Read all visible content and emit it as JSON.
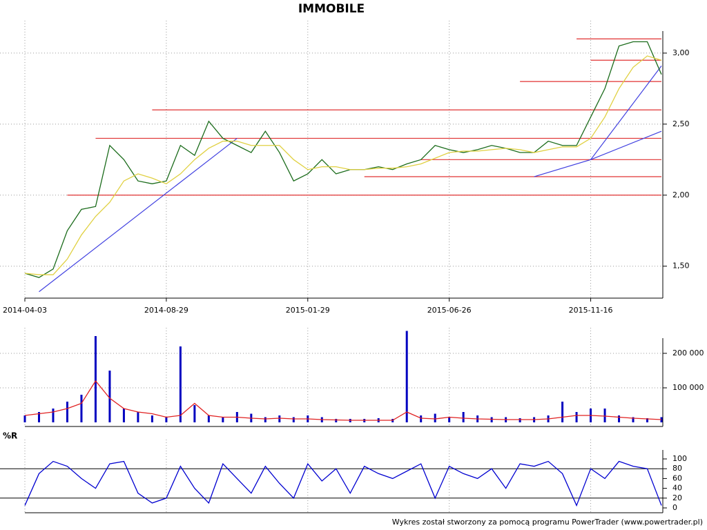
{
  "chart_data": [
    {
      "type": "line",
      "title": "IMMOBILE",
      "categories": [
        "2014-04-03",
        null,
        null,
        null,
        null,
        null,
        null,
        null,
        null,
        null,
        "2014-08-29",
        null,
        null,
        null,
        null,
        null,
        null,
        null,
        null,
        null,
        "2015-01-29",
        null,
        null,
        null,
        null,
        null,
        null,
        null,
        null,
        null,
        "2015-06-26",
        null,
        null,
        null,
        null,
        null,
        null,
        null,
        null,
        null,
        "2015-11-16",
        null,
        null,
        null,
        null,
        null
      ],
      "series": [
        {
          "color": "#1a6b1a",
          "values": [
            1.45,
            1.42,
            1.48,
            1.75,
            1.9,
            1.92,
            2.35,
            2.25,
            2.1,
            2.08,
            2.1,
            2.35,
            2.28,
            2.52,
            2.4,
            2.35,
            2.3,
            2.45,
            2.3,
            2.1,
            2.15,
            2.25,
            2.15,
            2.18,
            2.18,
            2.2,
            2.18,
            2.22,
            2.25,
            2.35,
            2.32,
            2.3,
            2.32,
            2.35,
            2.33,
            2.3,
            2.3,
            2.38,
            2.35,
            2.35,
            2.55,
            2.75,
            3.05,
            3.08,
            3.08,
            2.85
          ]
        },
        {
          "color": "#e0d040",
          "values": [
            1.45,
            1.44,
            1.44,
            1.55,
            1.72,
            1.85,
            1.95,
            2.1,
            2.15,
            2.12,
            2.08,
            2.15,
            2.25,
            2.33,
            2.38,
            2.38,
            2.35,
            2.35,
            2.35,
            2.25,
            2.18,
            2.2,
            2.2,
            2.18,
            2.18,
            2.19,
            2.19,
            2.2,
            2.22,
            2.26,
            2.3,
            2.31,
            2.31,
            2.32,
            2.33,
            2.32,
            2.3,
            2.32,
            2.34,
            2.34,
            2.4,
            2.55,
            2.75,
            2.9,
            2.98,
            2.95
          ]
        }
      ],
      "levels": [
        {
          "value": 2.0,
          "start": 3
        },
        {
          "value": 2.4,
          "start": 5
        },
        {
          "value": 2.6,
          "start": 9
        },
        {
          "value": 2.13,
          "start": 24
        },
        {
          "value": 2.25,
          "start": 28
        },
        {
          "value": 2.8,
          "start": 35
        },
        {
          "value": 2.95,
          "start": 40
        },
        {
          "value": 3.1,
          "start": 39
        }
      ],
      "level_color": "#e03030",
      "trendlines": [
        {
          "x": [
            1,
            15
          ],
          "y": [
            1.32,
            2.4
          ]
        },
        {
          "x": [
            36,
            40,
            45
          ],
          "y": [
            2.13,
            2.25,
            2.91
          ]
        },
        {
          "x": [
            40,
            45
          ],
          "y": [
            2.25,
            2.45
          ]
        }
      ],
      "trend_color": "#4040e0",
      "ylim": [
        1.28,
        3.16
      ],
      "yticks": [
        {
          "value": 1.5,
          "label": "1,50"
        },
        {
          "value": 2.0,
          "label": "2,00"
        },
        {
          "value": 2.5,
          "label": "2,50"
        },
        {
          "value": 3.0,
          "label": "3,00"
        }
      ],
      "grid": true
    },
    {
      "type": "bar",
      "series": [
        {
          "color": "#0000c0",
          "values": [
            20000,
            30000,
            40000,
            60000,
            80000,
            250000,
            150000,
            40000,
            30000,
            20000,
            15000,
            220000,
            50000,
            20000,
            15000,
            30000,
            25000,
            15000,
            20000,
            15000,
            20000,
            15000,
            10000,
            10000,
            10000,
            12000,
            10000,
            265000,
            20000,
            25000,
            15000,
            30000,
            20000,
            15000,
            15000,
            12000,
            15000,
            20000,
            60000,
            30000,
            40000,
            40000,
            20000,
            15000,
            12000,
            15000
          ]
        },
        {
          "color": "#e02020",
          "values": [
            20000,
            25000,
            30000,
            40000,
            55000,
            120000,
            70000,
            40000,
            30000,
            25000,
            15000,
            20000,
            55000,
            20000,
            15000,
            15000,
            12000,
            10000,
            12000,
            10000,
            10000,
            8000,
            7000,
            6000,
            6000,
            6000,
            6000,
            30000,
            12000,
            10000,
            15000,
            12000,
            10000,
            9000,
            8000,
            8000,
            8000,
            10000,
            15000,
            20000,
            20000,
            18000,
            15000,
            12000,
            10000,
            8000
          ]
        }
      ],
      "ylim": [
        0,
        270000
      ],
      "yticks": [
        {
          "value": 100000,
          "label": "100 000"
        },
        {
          "value": 200000,
          "label": "200 000"
        }
      ],
      "grid": true
    },
    {
      "type": "line",
      "title": "%R",
      "series": [
        {
          "color": "#0000d0",
          "values": [
            5,
            70,
            95,
            85,
            60,
            40,
            90,
            95,
            30,
            10,
            20,
            85,
            40,
            10,
            90,
            60,
            30,
            85,
            50,
            20,
            90,
            55,
            80,
            30,
            85,
            70,
            60,
            75,
            90,
            20,
            85,
            70,
            60,
            80,
            40,
            90,
            85,
            95,
            70,
            5,
            80,
            60,
            95,
            85,
            80,
            5
          ]
        }
      ],
      "ylim": [
        0,
        100
      ],
      "yticks": [
        0,
        20,
        40,
        60,
        80,
        100
      ],
      "reference_lines": [
        20,
        80
      ],
      "grid": false
    }
  ],
  "footer": "Wykres został stworzony za pomocą programu PowerTrader (www.powertrader.pl)"
}
